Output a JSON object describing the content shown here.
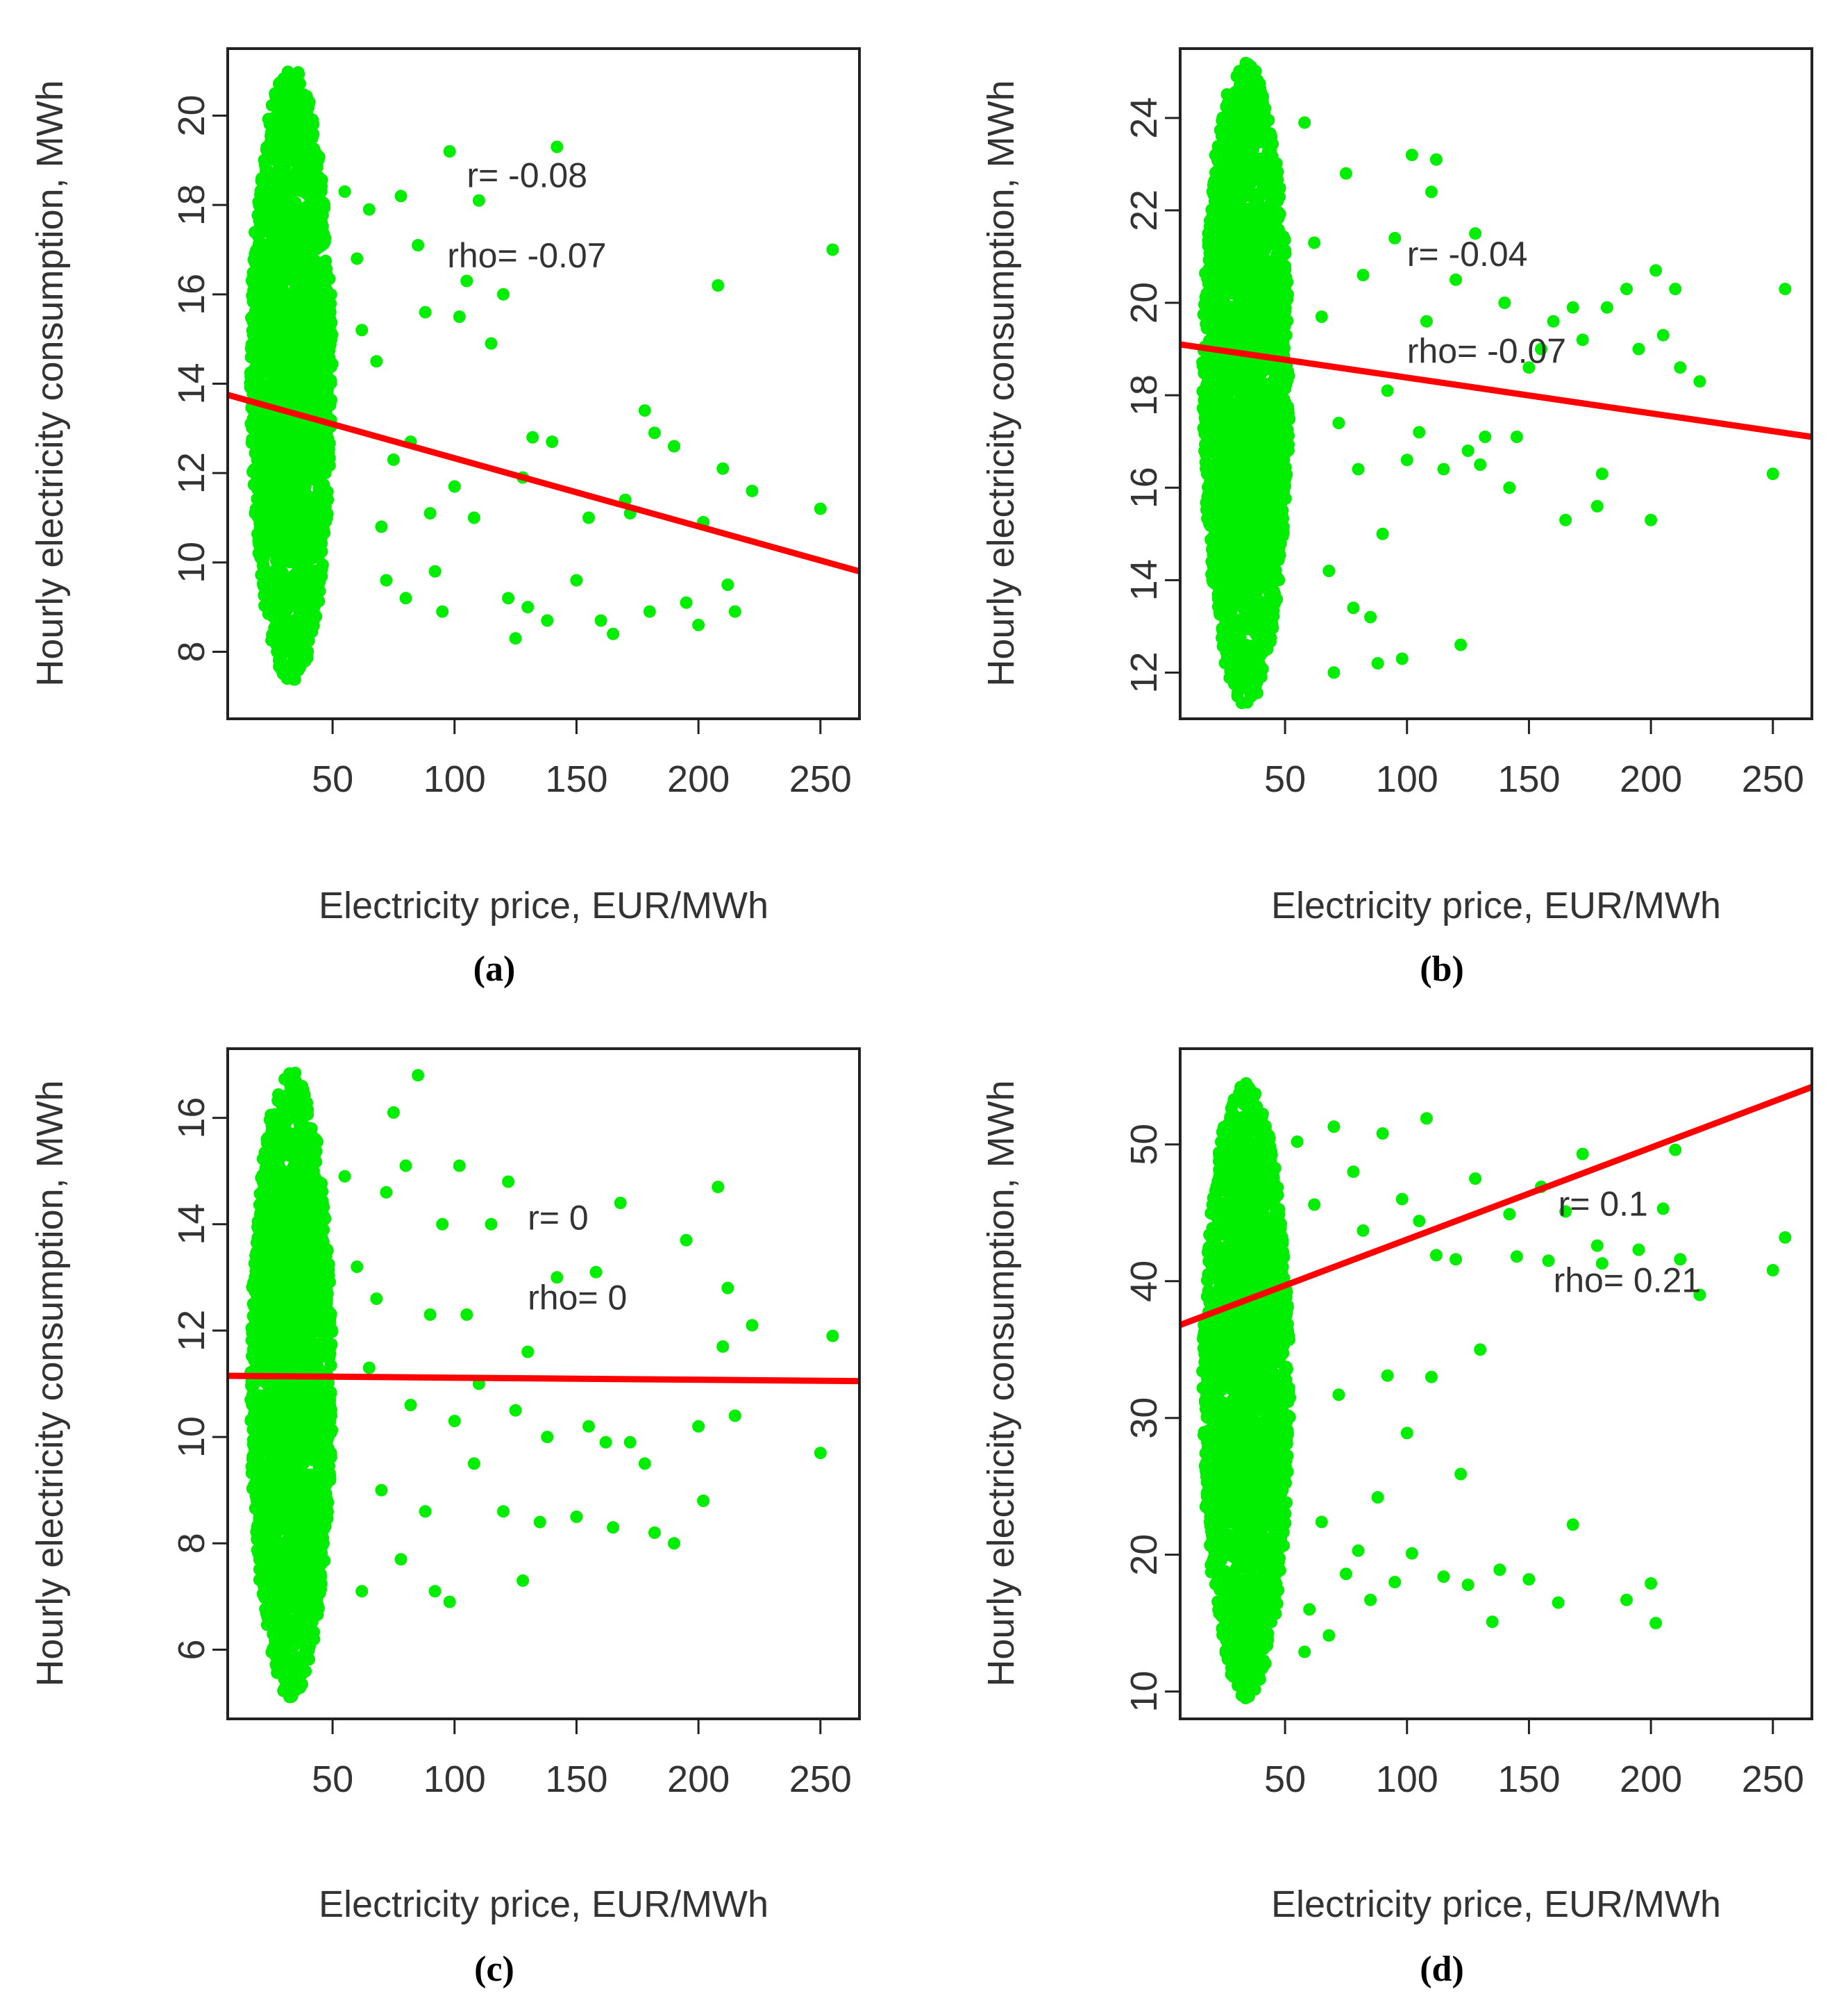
{
  "figure": {
    "point_color": "#00ee00",
    "line_color": "#ff0000",
    "frame_color": "#222222",
    "text_color": "#333333"
  },
  "chart_data": [
    {
      "type": "scatter",
      "panel": "a",
      "caption": "(a)",
      "xlabel": "Electricity price, EUR/MWh",
      "ylabel": "Hourly electricity consumption, MWh",
      "xlim": [
        7,
        266
      ],
      "ylim": [
        6.5,
        21.5
      ],
      "x_ticks": [
        50,
        100,
        150,
        200,
        250
      ],
      "x_tick_labels": [
        "50",
        "100",
        "150",
        "200",
        "250"
      ],
      "y_ticks": [
        8,
        10,
        12,
        14,
        16,
        18,
        20
      ],
      "y_tick_labels": [
        "8",
        "10",
        "12",
        "14",
        "16",
        "18",
        "20"
      ],
      "annotations": [
        {
          "text": "r= -0.08",
          "x": 105,
          "y": 18.4
        },
        {
          "text": "rho= -0.07",
          "x": 97,
          "y": 16.6
        }
      ],
      "regression": {
        "x": [
          7,
          266
        ],
        "y": [
          13.75,
          9.8
        ]
      },
      "cloud": {
        "x_min": 16,
        "x_max": 50,
        "y_min": 7.3,
        "y_max": 21.1,
        "count": 2200
      },
      "outliers": [
        [
          55,
          18.3
        ],
        [
          60,
          16.8
        ],
        [
          62,
          15.2
        ],
        [
          65,
          17.9
        ],
        [
          68,
          14.5
        ],
        [
          70,
          10.8
        ],
        [
          72,
          9.6
        ],
        [
          75,
          12.3
        ],
        [
          78,
          18.2
        ],
        [
          80,
          9.2
        ],
        [
          82,
          12.7
        ],
        [
          85,
          17.1
        ],
        [
          88,
          15.6
        ],
        [
          90,
          11.1
        ],
        [
          92,
          9.8
        ],
        [
          95,
          8.9
        ],
        [
          98,
          19.2
        ],
        [
          100,
          11.7
        ],
        [
          102,
          15.5
        ],
        [
          105,
          16.3
        ],
        [
          108,
          11.0
        ],
        [
          110,
          18.1
        ],
        [
          115,
          14.9
        ],
        [
          120,
          16.0
        ],
        [
          122,
          9.2
        ],
        [
          125,
          8.3
        ],
        [
          128,
          11.9
        ],
        [
          130,
          9.0
        ],
        [
          132,
          12.8
        ],
        [
          138,
          8.7
        ],
        [
          140,
          12.7
        ],
        [
          142,
          19.3
        ],
        [
          150,
          9.6
        ],
        [
          155,
          11.0
        ],
        [
          160,
          8.7
        ],
        [
          165,
          8.4
        ],
        [
          170,
          11.4
        ],
        [
          172,
          11.1
        ],
        [
          178,
          13.4
        ],
        [
          180,
          8.9
        ],
        [
          182,
          12.9
        ],
        [
          190,
          12.6
        ],
        [
          195,
          9.1
        ],
        [
          200,
          8.6
        ],
        [
          202,
          10.9
        ],
        [
          208,
          16.2
        ],
        [
          210,
          12.1
        ],
        [
          212,
          9.5
        ],
        [
          215,
          8.9
        ],
        [
          222,
          11.6
        ],
        [
          250,
          11.2
        ],
        [
          255,
          17.0
        ]
      ]
    },
    {
      "type": "scatter",
      "panel": "b",
      "caption": "(b)",
      "xlabel": "Electricity price, EUR/MWh",
      "ylabel": "Hourly electricity consumption, MWh",
      "xlim": [
        7,
        266
      ],
      "ylim": [
        11,
        25.5
      ],
      "x_ticks": [
        50,
        100,
        150,
        200,
        250
      ],
      "x_tick_labels": [
        "50",
        "100",
        "150",
        "200",
        "250"
      ],
      "y_ticks": [
        12,
        14,
        16,
        18,
        20,
        22,
        24
      ],
      "y_tick_labels": [
        "12",
        "14",
        "16",
        "18",
        "20",
        "22",
        "24"
      ],
      "annotations": [
        {
          "text": "r= -0.04",
          "x": 100,
          "y": 20.8
        },
        {
          "text": "rho= -0.07",
          "x": 100,
          "y": 18.7
        }
      ],
      "regression": {
        "x": [
          7,
          266
        ],
        "y": [
          19.1,
          17.1
        ]
      },
      "cloud": {
        "x_min": 16,
        "x_max": 52,
        "y_min": 11.3,
        "y_max": 25.2,
        "count": 2200
      },
      "outliers": [
        [
          58,
          23.9
        ],
        [
          62,
          21.3
        ],
        [
          65,
          19.7
        ],
        [
          68,
          14.2
        ],
        [
          70,
          12.0
        ],
        [
          72,
          17.4
        ],
        [
          75,
          22.8
        ],
        [
          78,
          13.4
        ],
        [
          80,
          16.4
        ],
        [
          82,
          20.6
        ],
        [
          85,
          13.2
        ],
        [
          88,
          12.2
        ],
        [
          90,
          15.0
        ],
        [
          92,
          18.1
        ],
        [
          95,
          21.4
        ],
        [
          98,
          12.3
        ],
        [
          100,
          16.6
        ],
        [
          102,
          23.2
        ],
        [
          105,
          17.2
        ],
        [
          108,
          19.6
        ],
        [
          110,
          22.4
        ],
        [
          112,
          23.1
        ],
        [
          115,
          16.4
        ],
        [
          120,
          20.5
        ],
        [
          122,
          12.6
        ],
        [
          125,
          16.8
        ],
        [
          128,
          21.5
        ],
        [
          130,
          16.5
        ],
        [
          132,
          17.1
        ],
        [
          140,
          20.0
        ],
        [
          142,
          16.0
        ],
        [
          145,
          17.1
        ],
        [
          150,
          18.6
        ],
        [
          155,
          19.0
        ],
        [
          160,
          19.6
        ],
        [
          165,
          15.3
        ],
        [
          168,
          19.9
        ],
        [
          172,
          19.2
        ],
        [
          178,
          15.6
        ],
        [
          180,
          16.3
        ],
        [
          182,
          19.9
        ],
        [
          190,
          20.3
        ],
        [
          195,
          19.0
        ],
        [
          200,
          15.3
        ],
        [
          202,
          20.7
        ],
        [
          205,
          19.3
        ],
        [
          210,
          20.3
        ],
        [
          212,
          18.6
        ],
        [
          220,
          18.3
        ],
        [
          250,
          16.3
        ],
        [
          255,
          20.3
        ]
      ]
    },
    {
      "type": "scatter",
      "panel": "c",
      "caption": "(c)",
      "xlabel": "Electricity price, EUR/MWh",
      "ylabel": "Hourly electricity consumption, MWh",
      "xlim": [
        7,
        266
      ],
      "ylim": [
        4.7,
        17.3
      ],
      "x_ticks": [
        50,
        100,
        150,
        200,
        250
      ],
      "x_tick_labels": [
        "50",
        "100",
        "150",
        "200",
        "250"
      ],
      "y_ticks": [
        6,
        8,
        10,
        12,
        14,
        16
      ],
      "y_tick_labels": [
        "6",
        "8",
        "10",
        "12",
        "14",
        "16"
      ],
      "annotations": [
        {
          "text": "r= 0",
          "x": 130,
          "y": 13.9
        },
        {
          "text": "rho= 0",
          "x": 130,
          "y": 12.4
        }
      ],
      "regression": {
        "x": [
          7,
          266
        ],
        "y": [
          11.15,
          11.05
        ]
      },
      "cloud": {
        "x_min": 16,
        "x_max": 50,
        "y_min": 5.1,
        "y_max": 16.9,
        "count": 2200
      },
      "outliers": [
        [
          55,
          14.9
        ],
        [
          60,
          13.2
        ],
        [
          62,
          7.1
        ],
        [
          65,
          11.3
        ],
        [
          68,
          12.6
        ],
        [
          70,
          9.0
        ],
        [
          72,
          14.6
        ],
        [
          75,
          16.1
        ],
        [
          78,
          7.7
        ],
        [
          80,
          15.1
        ],
        [
          82,
          10.6
        ],
        [
          85,
          16.8
        ],
        [
          88,
          8.6
        ],
        [
          90,
          12.3
        ],
        [
          92,
          7.1
        ],
        [
          95,
          14.0
        ],
        [
          98,
          6.9
        ],
        [
          100,
          10.3
        ],
        [
          102,
          15.1
        ],
        [
          105,
          12.3
        ],
        [
          108,
          9.5
        ],
        [
          110,
          11.0
        ],
        [
          115,
          14.0
        ],
        [
          120,
          8.6
        ],
        [
          122,
          14.8
        ],
        [
          125,
          10.5
        ],
        [
          128,
          7.3
        ],
        [
          130,
          11.6
        ],
        [
          135,
          8.4
        ],
        [
          138,
          10.0
        ],
        [
          142,
          13.0
        ],
        [
          150,
          8.5
        ],
        [
          155,
          10.2
        ],
        [
          158,
          13.1
        ],
        [
          162,
          9.9
        ],
        [
          165,
          8.3
        ],
        [
          168,
          14.4
        ],
        [
          172,
          9.9
        ],
        [
          178,
          9.5
        ],
        [
          182,
          8.2
        ],
        [
          190,
          8.0
        ],
        [
          195,
          13.7
        ],
        [
          200,
          10.2
        ],
        [
          202,
          8.8
        ],
        [
          208,
          14.7
        ],
        [
          210,
          11.7
        ],
        [
          212,
          12.8
        ],
        [
          215,
          10.4
        ],
        [
          222,
          12.1
        ],
        [
          250,
          9.7
        ],
        [
          255,
          11.9
        ]
      ]
    },
    {
      "type": "scatter",
      "panel": "d",
      "caption": "(d)",
      "xlabel": "Electricity price, EUR/MWh",
      "ylabel": "Hourly electricity consumption, MWh",
      "xlim": [
        7,
        266
      ],
      "ylim": [
        8,
        57
      ],
      "x_ticks": [
        50,
        100,
        150,
        200,
        250
      ],
      "x_tick_labels": [
        "50",
        "100",
        "150",
        "200",
        "250"
      ],
      "y_ticks": [
        10,
        20,
        30,
        40,
        50
      ],
      "y_tick_labels": [
        "10",
        "20",
        "30",
        "40",
        "50"
      ],
      "annotations": [
        {
          "text": "r= 0.1",
          "x": 162,
          "y": 44.8
        },
        {
          "text": "rho= 0.21",
          "x": 160,
          "y": 39.2
        }
      ],
      "regression": {
        "x": [
          7,
          266
        ],
        "y": [
          36.8,
          54.2
        ]
      },
      "cloud": {
        "x_min": 16,
        "x_max": 52,
        "y_min": 9.5,
        "y_max": 54.6,
        "count": 2200
      },
      "outliers": [
        [
          55,
          50.2
        ],
        [
          58,
          12.9
        ],
        [
          60,
          16.0
        ],
        [
          62,
          45.6
        ],
        [
          65,
          22.4
        ],
        [
          68,
          14.1
        ],
        [
          70,
          51.3
        ],
        [
          72,
          31.7
        ],
        [
          75,
          18.6
        ],
        [
          78,
          48.0
        ],
        [
          80,
          20.3
        ],
        [
          82,
          43.7
        ],
        [
          85,
          16.7
        ],
        [
          88,
          24.2
        ],
        [
          90,
          50.8
        ],
        [
          92,
          33.1
        ],
        [
          95,
          18.0
        ],
        [
          98,
          46.0
        ],
        [
          100,
          28.9
        ],
        [
          102,
          20.1
        ],
        [
          105,
          44.4
        ],
        [
          108,
          51.9
        ],
        [
          110,
          33.0
        ],
        [
          112,
          41.9
        ],
        [
          115,
          18.4
        ],
        [
          120,
          41.6
        ],
        [
          122,
          25.9
        ],
        [
          125,
          17.8
        ],
        [
          128,
          47.5
        ],
        [
          130,
          35.0
        ],
        [
          135,
          15.1
        ],
        [
          138,
          18.9
        ],
        [
          142,
          44.9
        ],
        [
          145,
          41.8
        ],
        [
          150,
          18.2
        ],
        [
          155,
          46.9
        ],
        [
          158,
          41.5
        ],
        [
          162,
          16.5
        ],
        [
          165,
          45.1
        ],
        [
          168,
          22.2
        ],
        [
          172,
          49.3
        ],
        [
          178,
          42.6
        ],
        [
          180,
          41.3
        ],
        [
          190,
          16.7
        ],
        [
          195,
          42.3
        ],
        [
          200,
          17.9
        ],
        [
          202,
          15.0
        ],
        [
          205,
          45.3
        ],
        [
          210,
          49.6
        ],
        [
          212,
          41.6
        ],
        [
          220,
          39.0
        ],
        [
          250,
          40.8
        ],
        [
          255,
          43.2
        ]
      ]
    }
  ]
}
